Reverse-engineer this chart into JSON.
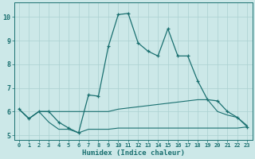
{
  "xlabel": "Humidex (Indice chaleur)",
  "bg_color": "#cce8e8",
  "grid_color": "#aad0d0",
  "line_color": "#1a7070",
  "xlim": [
    -0.5,
    23.5
  ],
  "ylim": [
    4.8,
    10.6
  ],
  "yticks": [
    5,
    6,
    7,
    8,
    9,
    10
  ],
  "xticks": [
    0,
    1,
    2,
    3,
    4,
    5,
    6,
    7,
    8,
    9,
    10,
    11,
    12,
    13,
    14,
    15,
    16,
    17,
    18,
    19,
    20,
    21,
    22,
    23
  ],
  "line1_x": [
    0,
    1,
    2,
    3,
    4,
    5,
    6,
    7,
    8,
    9,
    10,
    11,
    12,
    13,
    14,
    15,
    16,
    17,
    18,
    19,
    20,
    21,
    22,
    23
  ],
  "line1_y": [
    6.1,
    5.7,
    6.0,
    5.55,
    5.25,
    5.25,
    5.1,
    5.25,
    5.25,
    5.25,
    5.3,
    5.3,
    5.3,
    5.3,
    5.3,
    5.3,
    5.3,
    5.3,
    5.3,
    5.3,
    5.3,
    5.3,
    5.3,
    5.35
  ],
  "line2_x": [
    0,
    1,
    2,
    3,
    4,
    5,
    6,
    7,
    8,
    9,
    10,
    11,
    12,
    13,
    14,
    15,
    16,
    17,
    18,
    19,
    20,
    21,
    22,
    23
  ],
  "line2_y": [
    6.1,
    5.7,
    6.0,
    6.0,
    6.0,
    6.0,
    6.0,
    6.0,
    6.0,
    6.0,
    6.1,
    6.15,
    6.2,
    6.25,
    6.3,
    6.35,
    6.4,
    6.45,
    6.5,
    6.5,
    6.0,
    5.85,
    5.75,
    5.4
  ],
  "line3_x": [
    0,
    1,
    2,
    3,
    4,
    5,
    6,
    7,
    8,
    9,
    10,
    11,
    12,
    13,
    14,
    15,
    16,
    17,
    18,
    19,
    20,
    21,
    22,
    23
  ],
  "line3_y": [
    6.1,
    5.7,
    6.0,
    6.0,
    5.55,
    5.3,
    5.1,
    6.7,
    6.65,
    8.75,
    10.1,
    10.15,
    8.9,
    8.55,
    8.35,
    9.5,
    8.35,
    8.35,
    7.3,
    6.5,
    6.45,
    6.0,
    5.75,
    5.35
  ]
}
